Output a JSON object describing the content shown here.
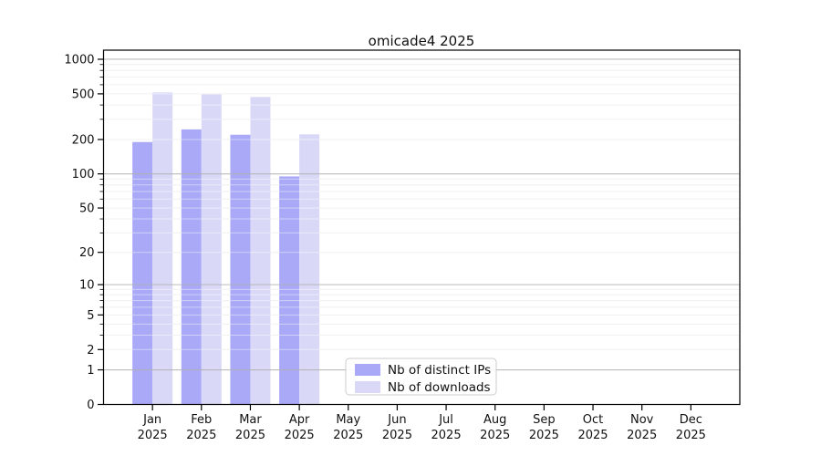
{
  "title": "omicade4 2025",
  "colors": {
    "bar_distinct_ips": "#a9a9f7",
    "bar_downloads": "#d9d9f7",
    "grid_major": "#b0b0b0",
    "grid_minor": "#e8e8e8",
    "axis": "#000000",
    "legend_border": "#cccccc",
    "background": "#ffffff"
  },
  "chart_data": {
    "type": "bar",
    "title": "omicade4 2025",
    "categories": [
      "Jan",
      "Feb",
      "Mar",
      "Apr",
      "May",
      "Jun",
      "Jul",
      "Aug",
      "Sep",
      "Oct",
      "Nov",
      "Dec"
    ],
    "category_year": "2025",
    "series": [
      {
        "name": "Nb of distinct IPs",
        "color": "#a9a9f7",
        "values": [
          190,
          245,
          220,
          95,
          null,
          null,
          null,
          null,
          null,
          null,
          null,
          null
        ]
      },
      {
        "name": "Nb of downloads",
        "color": "#d9d9f7",
        "values": [
          515,
          495,
          470,
          222,
          null,
          null,
          null,
          null,
          null,
          null,
          null,
          null
        ]
      }
    ],
    "y_ticks": [
      0,
      1,
      2,
      5,
      10,
      20,
      50,
      100,
      200,
      500,
      1000
    ],
    "y_scale": "log1p",
    "y_max": 1200,
    "ylim": [
      0,
      1200
    ],
    "grid": true,
    "legend_position": "bottom-center-inside",
    "legend_entries": [
      "Nb of distinct IPs",
      "Nb of downloads"
    ]
  }
}
